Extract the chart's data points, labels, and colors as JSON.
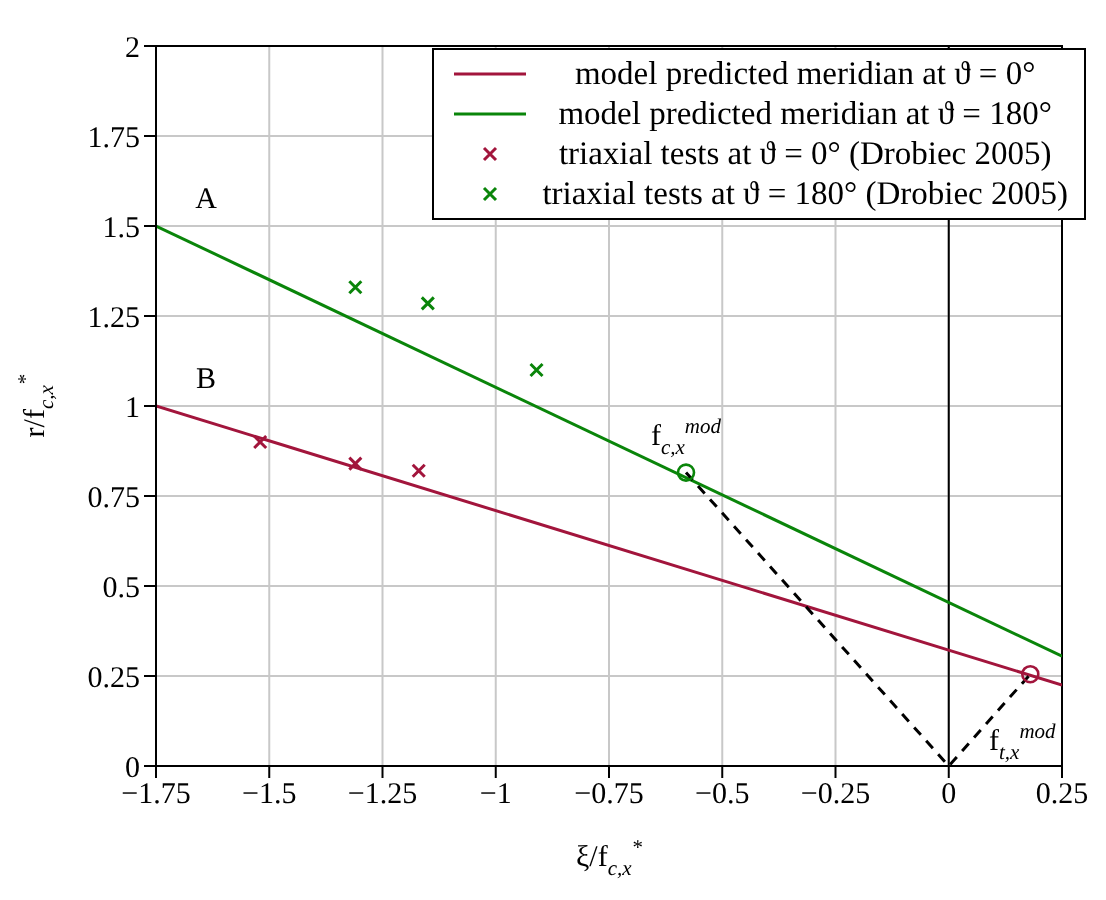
{
  "chart_data": {
    "type": "line",
    "xlabel": "ξ/f$_{c,x}$$^{*}$",
    "ylabel": "r/f$_{c,x}$$^{*}$",
    "xlim": [
      -1.75,
      0.25
    ],
    "xticks": [
      -1.75,
      -1.5,
      -1.25,
      -1,
      -0.75,
      -0.5,
      -0.25,
      0,
      0.25
    ],
    "ylim": [
      0,
      2
    ],
    "yticks": [
      0,
      0.25,
      0.5,
      0.75,
      1,
      1.25,
      1.5,
      1.75,
      2
    ],
    "grid": true,
    "legend": "top right",
    "series": [
      {
        "name": "model predicted meridian at ϑ = 0°",
        "color": "#a2153c",
        "marker": "none",
        "x": [
          -1.75,
          0.25
        ],
        "values": [
          1.0,
          0.225
        ]
      },
      {
        "name": "model predicted meridian at ϑ = 180°",
        "color": "#0a850a",
        "marker": "none",
        "x": [
          -1.75,
          0.25
        ],
        "values": [
          1.5,
          0.305
        ]
      },
      {
        "name": "triaxial tests at ϑ = 0° (Drobiec 2005)",
        "type": "scatter",
        "color": "#a2153c",
        "marker": "cross",
        "x": [
          -1.52,
          -1.31,
          -1.17
        ],
        "values": [
          0.9,
          0.84,
          0.82
        ]
      },
      {
        "name": "triaxial tests at ϑ = 180° (Drobiec 2005)",
        "type": "scatter",
        "color": "#0a850a",
        "marker": "cross",
        "x": [
          -1.31,
          -1.15,
          -0.91
        ],
        "values": [
          1.33,
          1.285,
          1.1
        ]
      },
      {
        "color": "#000000",
        "marker": "none",
        "line_style": "dashed",
        "x": [
          -0.58,
          0,
          0.18
        ],
        "values": [
          0.815,
          0,
          0.255
        ]
      },
      {
        "type": "scatter",
        "color": "#0a850a",
        "marker": "circle",
        "x": [
          -0.58
        ],
        "values": [
          0.815
        ]
      },
      {
        "type": "scatter",
        "color": "#a2153c",
        "marker": "circle",
        "x": [
          0.18
        ],
        "values": [
          0.255
        ]
      }
    ],
    "ref_lines": [
      {
        "axis": "x",
        "value": 0,
        "color": "#000000"
      }
    ],
    "annotations": [
      {
        "text": "A",
        "x": -1.75,
        "y": 1.5
      },
      {
        "text": "B",
        "x": -1.75,
        "y": 1.0
      },
      {
        "text": "f$_{c,x}$$^{mod}$",
        "x": -0.58,
        "y": 0.815
      },
      {
        "text": "f$_{t,x}$$^{mod}$",
        "x": 0.18,
        "y": 0.255
      }
    ]
  }
}
